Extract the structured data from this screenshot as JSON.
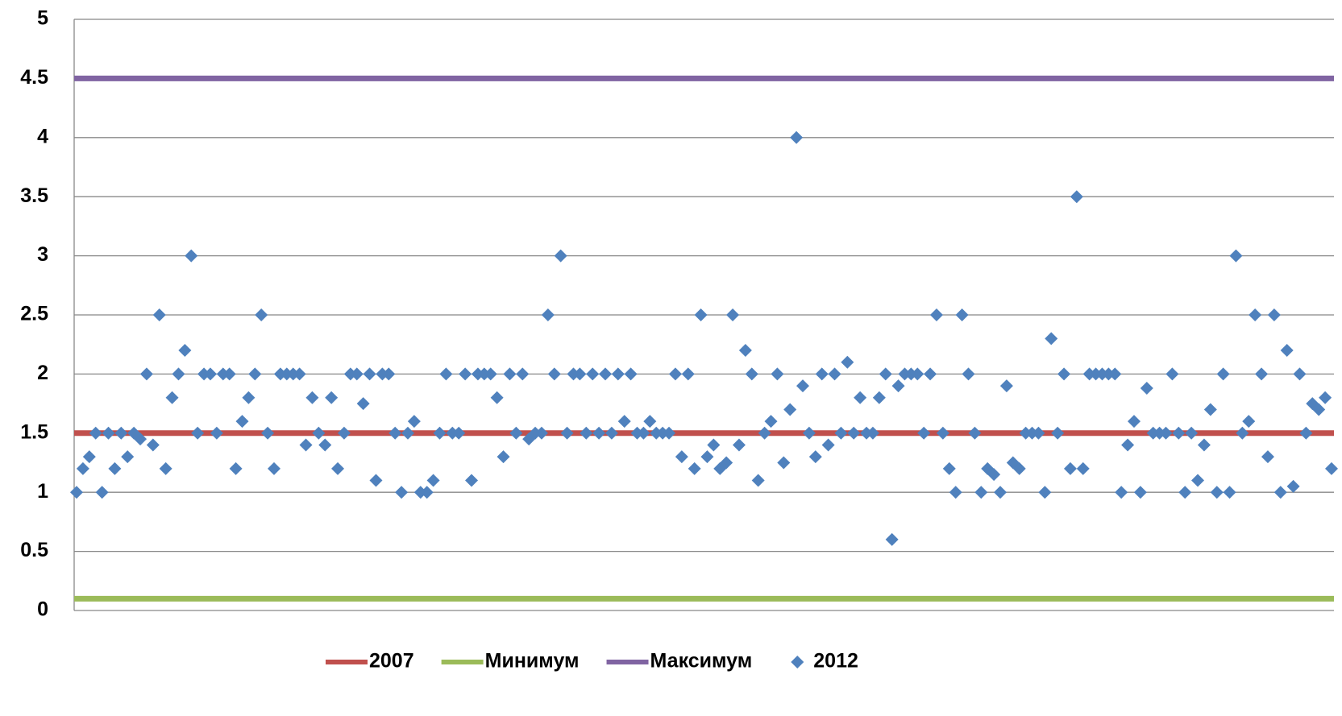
{
  "chart_data": {
    "type": "scatter",
    "ylim": [
      0,
      5
    ],
    "yticks": [
      0,
      0.5,
      1,
      1.5,
      2,
      2.5,
      3,
      3.5,
      4,
      4.5,
      5
    ],
    "grid": true,
    "lines": [
      {
        "name": "2007",
        "color": "#c0504d",
        "value": 1.5
      },
      {
        "name": "Минимум",
        "color": "#9bbb59",
        "value": 0.1
      },
      {
        "name": "Максимум",
        "color": "#8064a2",
        "value": 4.5
      }
    ],
    "series": [
      {
        "name": "2012",
        "color": "#4f81bd",
        "values": [
          1,
          1.2,
          1.3,
          1.5,
          1,
          1.5,
          1.2,
          1.5,
          1.3,
          1.5,
          1.45,
          2,
          1.4,
          2.5,
          1.2,
          1.8,
          2,
          2.2,
          3,
          1.5,
          2,
          2,
          1.5,
          2,
          2,
          1.2,
          1.6,
          1.8,
          2,
          2.5,
          1.5,
          1.2,
          2,
          2,
          2,
          2,
          1.4,
          1.8,
          1.5,
          1.4,
          1.8,
          1.2,
          1.5,
          2,
          2,
          1.75,
          2,
          1.1,
          2,
          2,
          1.5,
          1,
          1.5,
          1.6,
          1,
          1,
          1.1,
          1.5,
          2,
          1.5,
          1.5,
          2,
          1.1,
          2,
          2,
          2,
          1.8,
          1.3,
          2,
          1.5,
          2,
          1.45,
          1.5,
          1.5,
          2.5,
          2,
          3,
          1.5,
          2,
          2,
          1.5,
          2,
          1.5,
          2,
          1.5,
          2,
          1.6,
          2,
          1.5,
          1.5,
          1.6,
          1.5,
          1.5,
          1.5,
          2,
          1.3,
          2,
          1.2,
          2.5,
          1.3,
          1.4,
          1.2,
          1.25,
          2.5,
          1.4,
          2.2,
          2,
          1.1,
          1.5,
          1.6,
          2,
          1.25,
          1.7,
          4,
          1.9,
          1.5,
          1.3,
          2,
          1.4,
          2,
          1.5,
          2.1,
          1.5,
          1.8,
          1.5,
          1.5,
          1.8,
          2,
          0.6,
          1.9,
          2,
          2,
          2,
          1.5,
          2,
          2.5,
          1.5,
          1.2,
          1,
          2.5,
          2,
          1.5,
          1,
          1.2,
          1.15,
          1,
          1.9,
          1.25,
          1.2,
          1.5,
          1.5,
          1.5,
          1,
          2.3,
          1.5,
          2,
          1.2,
          3.5,
          1.2,
          2,
          2,
          2,
          2,
          2,
          1,
          1.4,
          1.6,
          1,
          1.88,
          1.5,
          1.5,
          1.5,
          2,
          1.5,
          1,
          1.5,
          1.1,
          1.4,
          1.7,
          1,
          2,
          1,
          3,
          1.5,
          1.6,
          2.5,
          2,
          1.3,
          2.5,
          1,
          2.2,
          1.05,
          2,
          1.5,
          1.75,
          1.7,
          1.8,
          1.2
        ]
      }
    ]
  }
}
